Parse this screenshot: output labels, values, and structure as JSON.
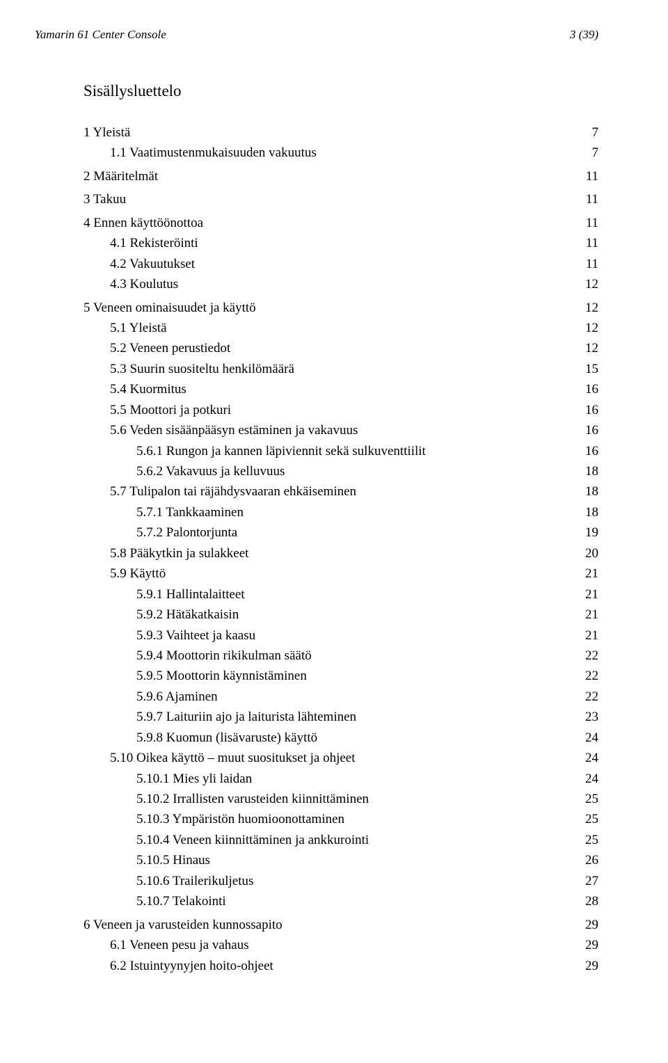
{
  "header": {
    "doc_title": "Yamarin 61 Center Console",
    "page_counter": "3 (39)"
  },
  "toc": {
    "title": "Sisällysluettelo",
    "font": {
      "family": "Times New Roman",
      "body_size_pt": 14,
      "title_size_pt": 17,
      "color": "#000000"
    },
    "entries": [
      {
        "level": 1,
        "label": "1 Yleistä",
        "page": "7"
      },
      {
        "level": 2,
        "label": "1.1 Vaatimustenmukaisuuden vakuutus",
        "page": "7"
      },
      {
        "level": 1,
        "label": "2 Määritelmät",
        "page": "11"
      },
      {
        "level": 1,
        "label": "3 Takuu",
        "page": "11"
      },
      {
        "level": 1,
        "label": "4 Ennen käyttöönottoa",
        "page": "11"
      },
      {
        "level": 2,
        "label": "4.1 Rekisteröinti",
        "page": "11"
      },
      {
        "level": 2,
        "label": "4.2 Vakuutukset",
        "page": "11"
      },
      {
        "level": 2,
        "label": "4.3 Koulutus",
        "page": "12"
      },
      {
        "level": 1,
        "label": "5 Veneen ominaisuudet ja käyttö",
        "page": "12"
      },
      {
        "level": 2,
        "label": "5.1 Yleistä",
        "page": "12"
      },
      {
        "level": 2,
        "label": "5.2 Veneen perustiedot",
        "page": "12"
      },
      {
        "level": 2,
        "label": "5.3 Suurin suositeltu henkilömäärä",
        "page": "15"
      },
      {
        "level": 2,
        "label": "5.4 Kuormitus",
        "page": "16"
      },
      {
        "level": 2,
        "label": "5.5 Moottori ja potkuri",
        "page": "16"
      },
      {
        "level": 2,
        "label": "5.6 Veden sisäänpääsyn estäminen ja vakavuus",
        "page": "16"
      },
      {
        "level": 3,
        "label": "5.6.1 Rungon ja kannen läpiviennit sekä sulkuventtiilit",
        "page": "16"
      },
      {
        "level": 3,
        "label": "5.6.2 Vakavuus ja kelluvuus",
        "page": "18"
      },
      {
        "level": 2,
        "label": "5.7 Tulipalon tai räjähdysvaaran ehkäiseminen",
        "page": "18"
      },
      {
        "level": 3,
        "label": "5.7.1 Tankkaaminen",
        "page": "18"
      },
      {
        "level": 3,
        "label": "5.7.2 Palontorjunta",
        "page": "19"
      },
      {
        "level": 2,
        "label": "5.8 Pääkytkin ja sulakkeet",
        "page": "20"
      },
      {
        "level": 2,
        "label": "5.9 Käyttö",
        "page": "21"
      },
      {
        "level": 3,
        "label": "5.9.1 Hallintalaitteet",
        "page": "21"
      },
      {
        "level": 3,
        "label": "5.9.2 Hätäkatkaisin",
        "page": "21"
      },
      {
        "level": 3,
        "label": "5.9.3 Vaihteet ja kaasu",
        "page": "21"
      },
      {
        "level": 3,
        "label": "5.9.4 Moottorin rikikulman säätö",
        "page": "22"
      },
      {
        "level": 3,
        "label": "5.9.5 Moottorin käynnistäminen",
        "page": "22"
      },
      {
        "level": 3,
        "label": "5.9.6 Ajaminen",
        "page": "22"
      },
      {
        "level": 3,
        "label": "5.9.7 Laituriin ajo ja laiturista lähteminen",
        "page": "23"
      },
      {
        "level": 3,
        "label": "5.9.8 Kuomun (lisävaruste) käyttö",
        "page": "24"
      },
      {
        "level": 2,
        "label": "5.10 Oikea käyttö – muut suositukset ja ohjeet",
        "page": "24"
      },
      {
        "level": 3,
        "label": "5.10.1 Mies yli laidan",
        "page": "24"
      },
      {
        "level": 3,
        "label": "5.10.2 Irrallisten varusteiden kiinnittäminen",
        "page": "25"
      },
      {
        "level": 3,
        "label": "5.10.3 Ympäristön huomioonottaminen",
        "page": "25"
      },
      {
        "level": 3,
        "label": "5.10.4 Veneen kiinnittäminen ja ankkurointi",
        "page": "25"
      },
      {
        "level": 3,
        "label": "5.10.5 Hinaus",
        "page": "26"
      },
      {
        "level": 3,
        "label": "5.10.6 Trailerikuljetus",
        "page": "27"
      },
      {
        "level": 3,
        "label": "5.10.7 Telakointi",
        "page": "28"
      },
      {
        "level": 1,
        "label": "6 Veneen ja varusteiden kunnossapito",
        "page": "29"
      },
      {
        "level": 2,
        "label": "6.1 Veneen pesu ja vahaus",
        "page": "29"
      },
      {
        "level": 2,
        "label": "6.2 Istuintyynyjen hoito-ohjeet",
        "page": "29"
      }
    ]
  }
}
